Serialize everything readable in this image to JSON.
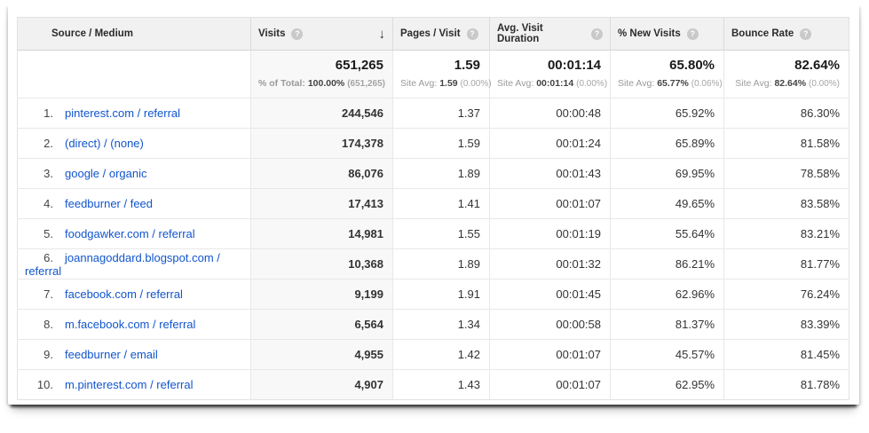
{
  "colors": {
    "link": "#1155cc",
    "header_bg": "#f1f1f1",
    "sorted_column_bg": "#f8f8f8",
    "row_border": "#e8e8e8"
  },
  "icons": {
    "help": "?",
    "sort_desc": "↓"
  },
  "table": {
    "columns": [
      {
        "label": "Source / Medium"
      },
      {
        "label": "Visits"
      },
      {
        "label": "Pages / Visit"
      },
      {
        "label": "Avg. Visit Duration"
      },
      {
        "label": "% New Visits"
      },
      {
        "label": "Bounce Rate"
      }
    ],
    "summary": {
      "visits": {
        "value": "651,265",
        "sub_label": "% of Total:",
        "sub_value": "100.00%",
        "sub_extra": "(651,265)"
      },
      "pages": {
        "value": "1.59",
        "sub_label": "Site Avg:",
        "sub_value": "1.59",
        "sub_extra": "(0.00%)"
      },
      "duration": {
        "value": "00:01:14",
        "sub_label": "Site Avg:",
        "sub_value": "00:01:14",
        "sub_extra": "(0.00%)"
      },
      "new_visits": {
        "value": "65.80%",
        "sub_label": "Site Avg:",
        "sub_value": "65.77%",
        "sub_extra": "(0.06%)"
      },
      "bounce": {
        "value": "82.64%",
        "sub_label": "Site Avg:",
        "sub_value": "82.64%",
        "sub_extra": "(0.00%)"
      }
    },
    "rows": [
      {
        "rank": "1.",
        "source": "pinterest.com / referral",
        "visits": "244,546",
        "pages": "1.37",
        "duration": "00:00:48",
        "new_visits": "65.92%",
        "bounce": "86.30%"
      },
      {
        "rank": "2.",
        "source": "(direct) / (none)",
        "visits": "174,378",
        "pages": "1.59",
        "duration": "00:01:24",
        "new_visits": "65.89%",
        "bounce": "81.58%"
      },
      {
        "rank": "3.",
        "source": "google / organic",
        "visits": "86,076",
        "pages": "1.89",
        "duration": "00:01:43",
        "new_visits": "69.95%",
        "bounce": "78.58%"
      },
      {
        "rank": "4.",
        "source": "feedburner / feed",
        "visits": "17,413",
        "pages": "1.41",
        "duration": "00:01:07",
        "new_visits": "49.65%",
        "bounce": "83.58%"
      },
      {
        "rank": "5.",
        "source": "foodgawker.com / referral",
        "visits": "14,981",
        "pages": "1.55",
        "duration": "00:01:19",
        "new_visits": "55.64%",
        "bounce": "83.21%"
      },
      {
        "rank": "6.",
        "source": "joannagoddard.blogspot.com / referral",
        "visits": "10,368",
        "pages": "1.89",
        "duration": "00:01:32",
        "new_visits": "86.21%",
        "bounce": "81.77%"
      },
      {
        "rank": "7.",
        "source": "facebook.com / referral",
        "visits": "9,199",
        "pages": "1.91",
        "duration": "00:01:45",
        "new_visits": "62.96%",
        "bounce": "76.24%"
      },
      {
        "rank": "8.",
        "source": "m.facebook.com / referral",
        "visits": "6,564",
        "pages": "1.34",
        "duration": "00:00:58",
        "new_visits": "81.37%",
        "bounce": "83.39%"
      },
      {
        "rank": "9.",
        "source": "feedburner / email",
        "visits": "4,955",
        "pages": "1.42",
        "duration": "00:01:07",
        "new_visits": "45.57%",
        "bounce": "81.45%"
      },
      {
        "rank": "10.",
        "source": "m.pinterest.com / referral",
        "visits": "4,907",
        "pages": "1.43",
        "duration": "00:01:07",
        "new_visits": "62.95%",
        "bounce": "81.78%"
      }
    ]
  }
}
